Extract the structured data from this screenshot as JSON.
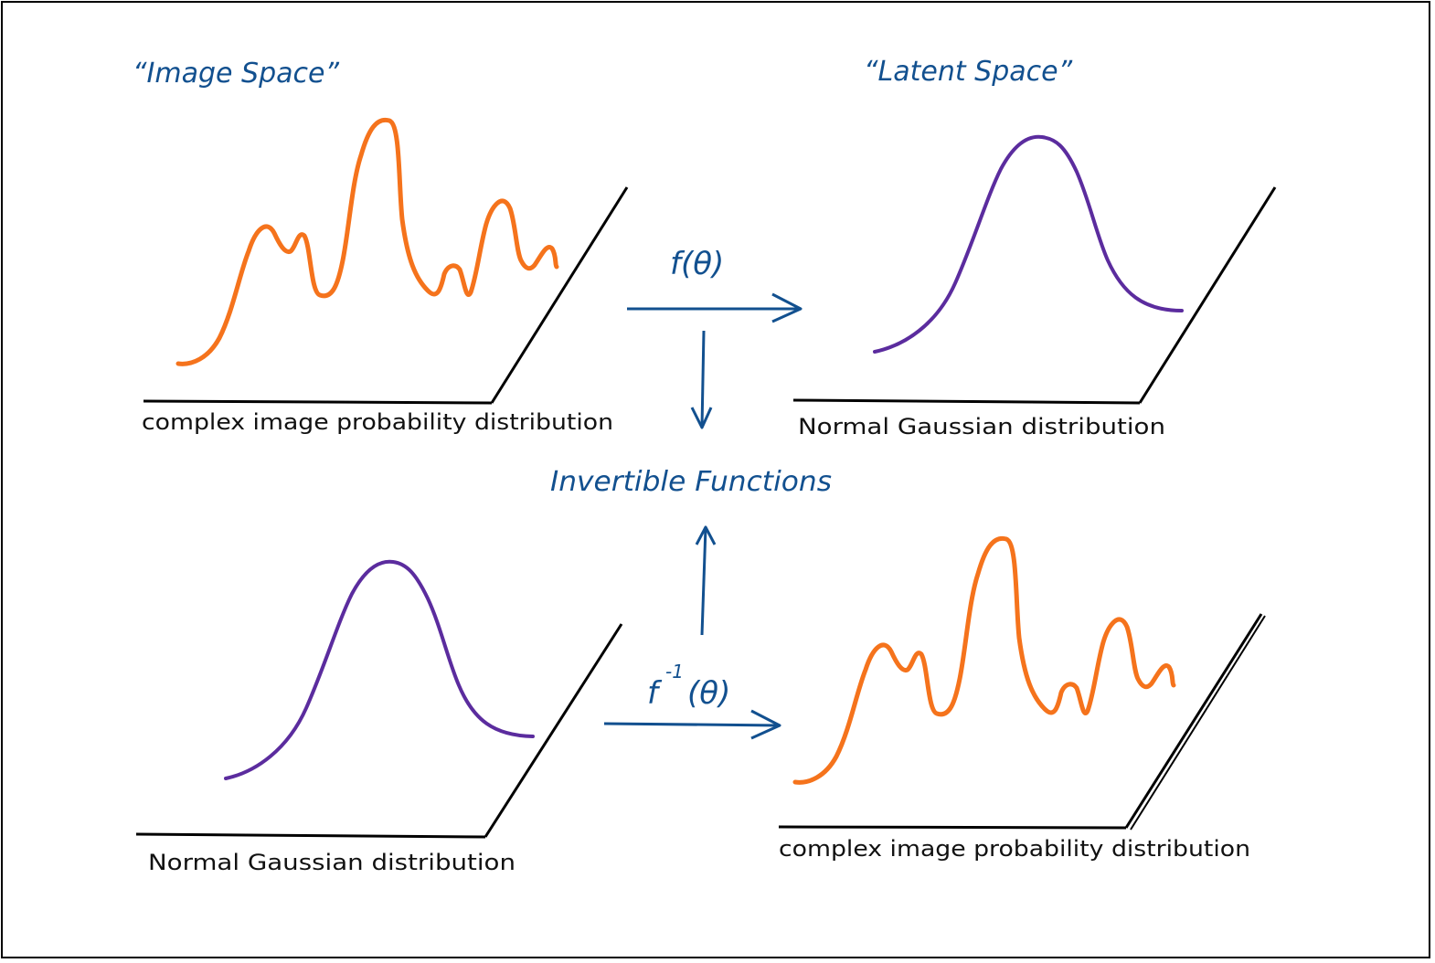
{
  "colors": {
    "blue": "#12508f",
    "orange": "#f5731c",
    "purple": "#5b2c9e",
    "black": "#000000"
  },
  "titles": {
    "image_space": "“Image Space”",
    "latent_space": "“Latent Space”"
  },
  "arrows": {
    "forward": "f(θ)",
    "inverse_base": "f",
    "inverse_exp": "-1",
    "inverse_arg": "(θ)",
    "center": "Invertible Functions"
  },
  "panels": {
    "top_left": {
      "caption": "complex image probability distribution",
      "curve": "complex"
    },
    "top_right": {
      "caption": "Normal Gaussian distribution",
      "curve": "gaussian"
    },
    "bottom_left": {
      "caption": "Normal Gaussian distribution",
      "curve": "gaussian"
    },
    "bottom_right": {
      "caption": "complex image probability distribution",
      "curve": "complex"
    }
  }
}
